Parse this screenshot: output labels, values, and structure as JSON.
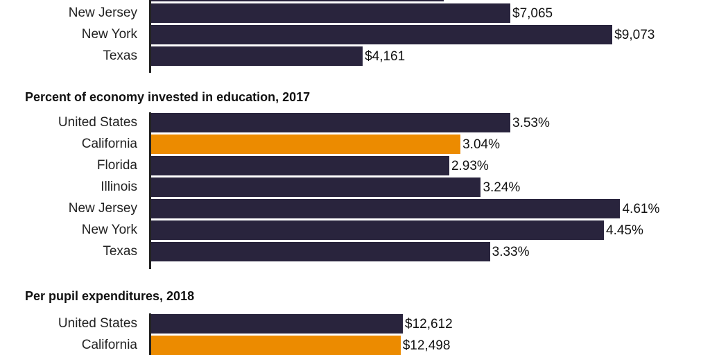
{
  "colors": {
    "default": "#29243d",
    "highlight": "#ec8b00"
  },
  "chart_data": [
    {
      "type": "bar",
      "orientation": "horizontal",
      "title": "",
      "categories": [
        "",
        "New Jersey",
        "New York",
        "Texas"
      ],
      "values": [
        5755,
        7065,
        9073,
        4161
      ],
      "labels": [
        "",
        "$7,065",
        "$9,073",
        "$4,161"
      ],
      "highlight": []
    },
    {
      "type": "bar",
      "orientation": "horizontal",
      "title": "Percent of economy invested in education, 2017",
      "categories": [
        "United States",
        "California",
        "Florida",
        "Illinois",
        "New Jersey",
        "New York",
        "Texas"
      ],
      "values": [
        3.53,
        3.04,
        2.93,
        3.24,
        4.61,
        4.45,
        3.33
      ],
      "labels": [
        "3.53%",
        "3.04%",
        "2.93%",
        "3.24%",
        "4.61%",
        "4.45%",
        "3.33%"
      ],
      "highlight": [
        "California"
      ]
    },
    {
      "type": "bar",
      "orientation": "horizontal",
      "title": "Per pupil expenditures, 2018",
      "categories": [
        "United States",
        "California",
        ""
      ],
      "values": [
        12612,
        12498,
        null
      ],
      "labels": [
        "$12,612",
        "$12,498",
        ""
      ],
      "highlight": [
        "California"
      ]
    }
  ]
}
